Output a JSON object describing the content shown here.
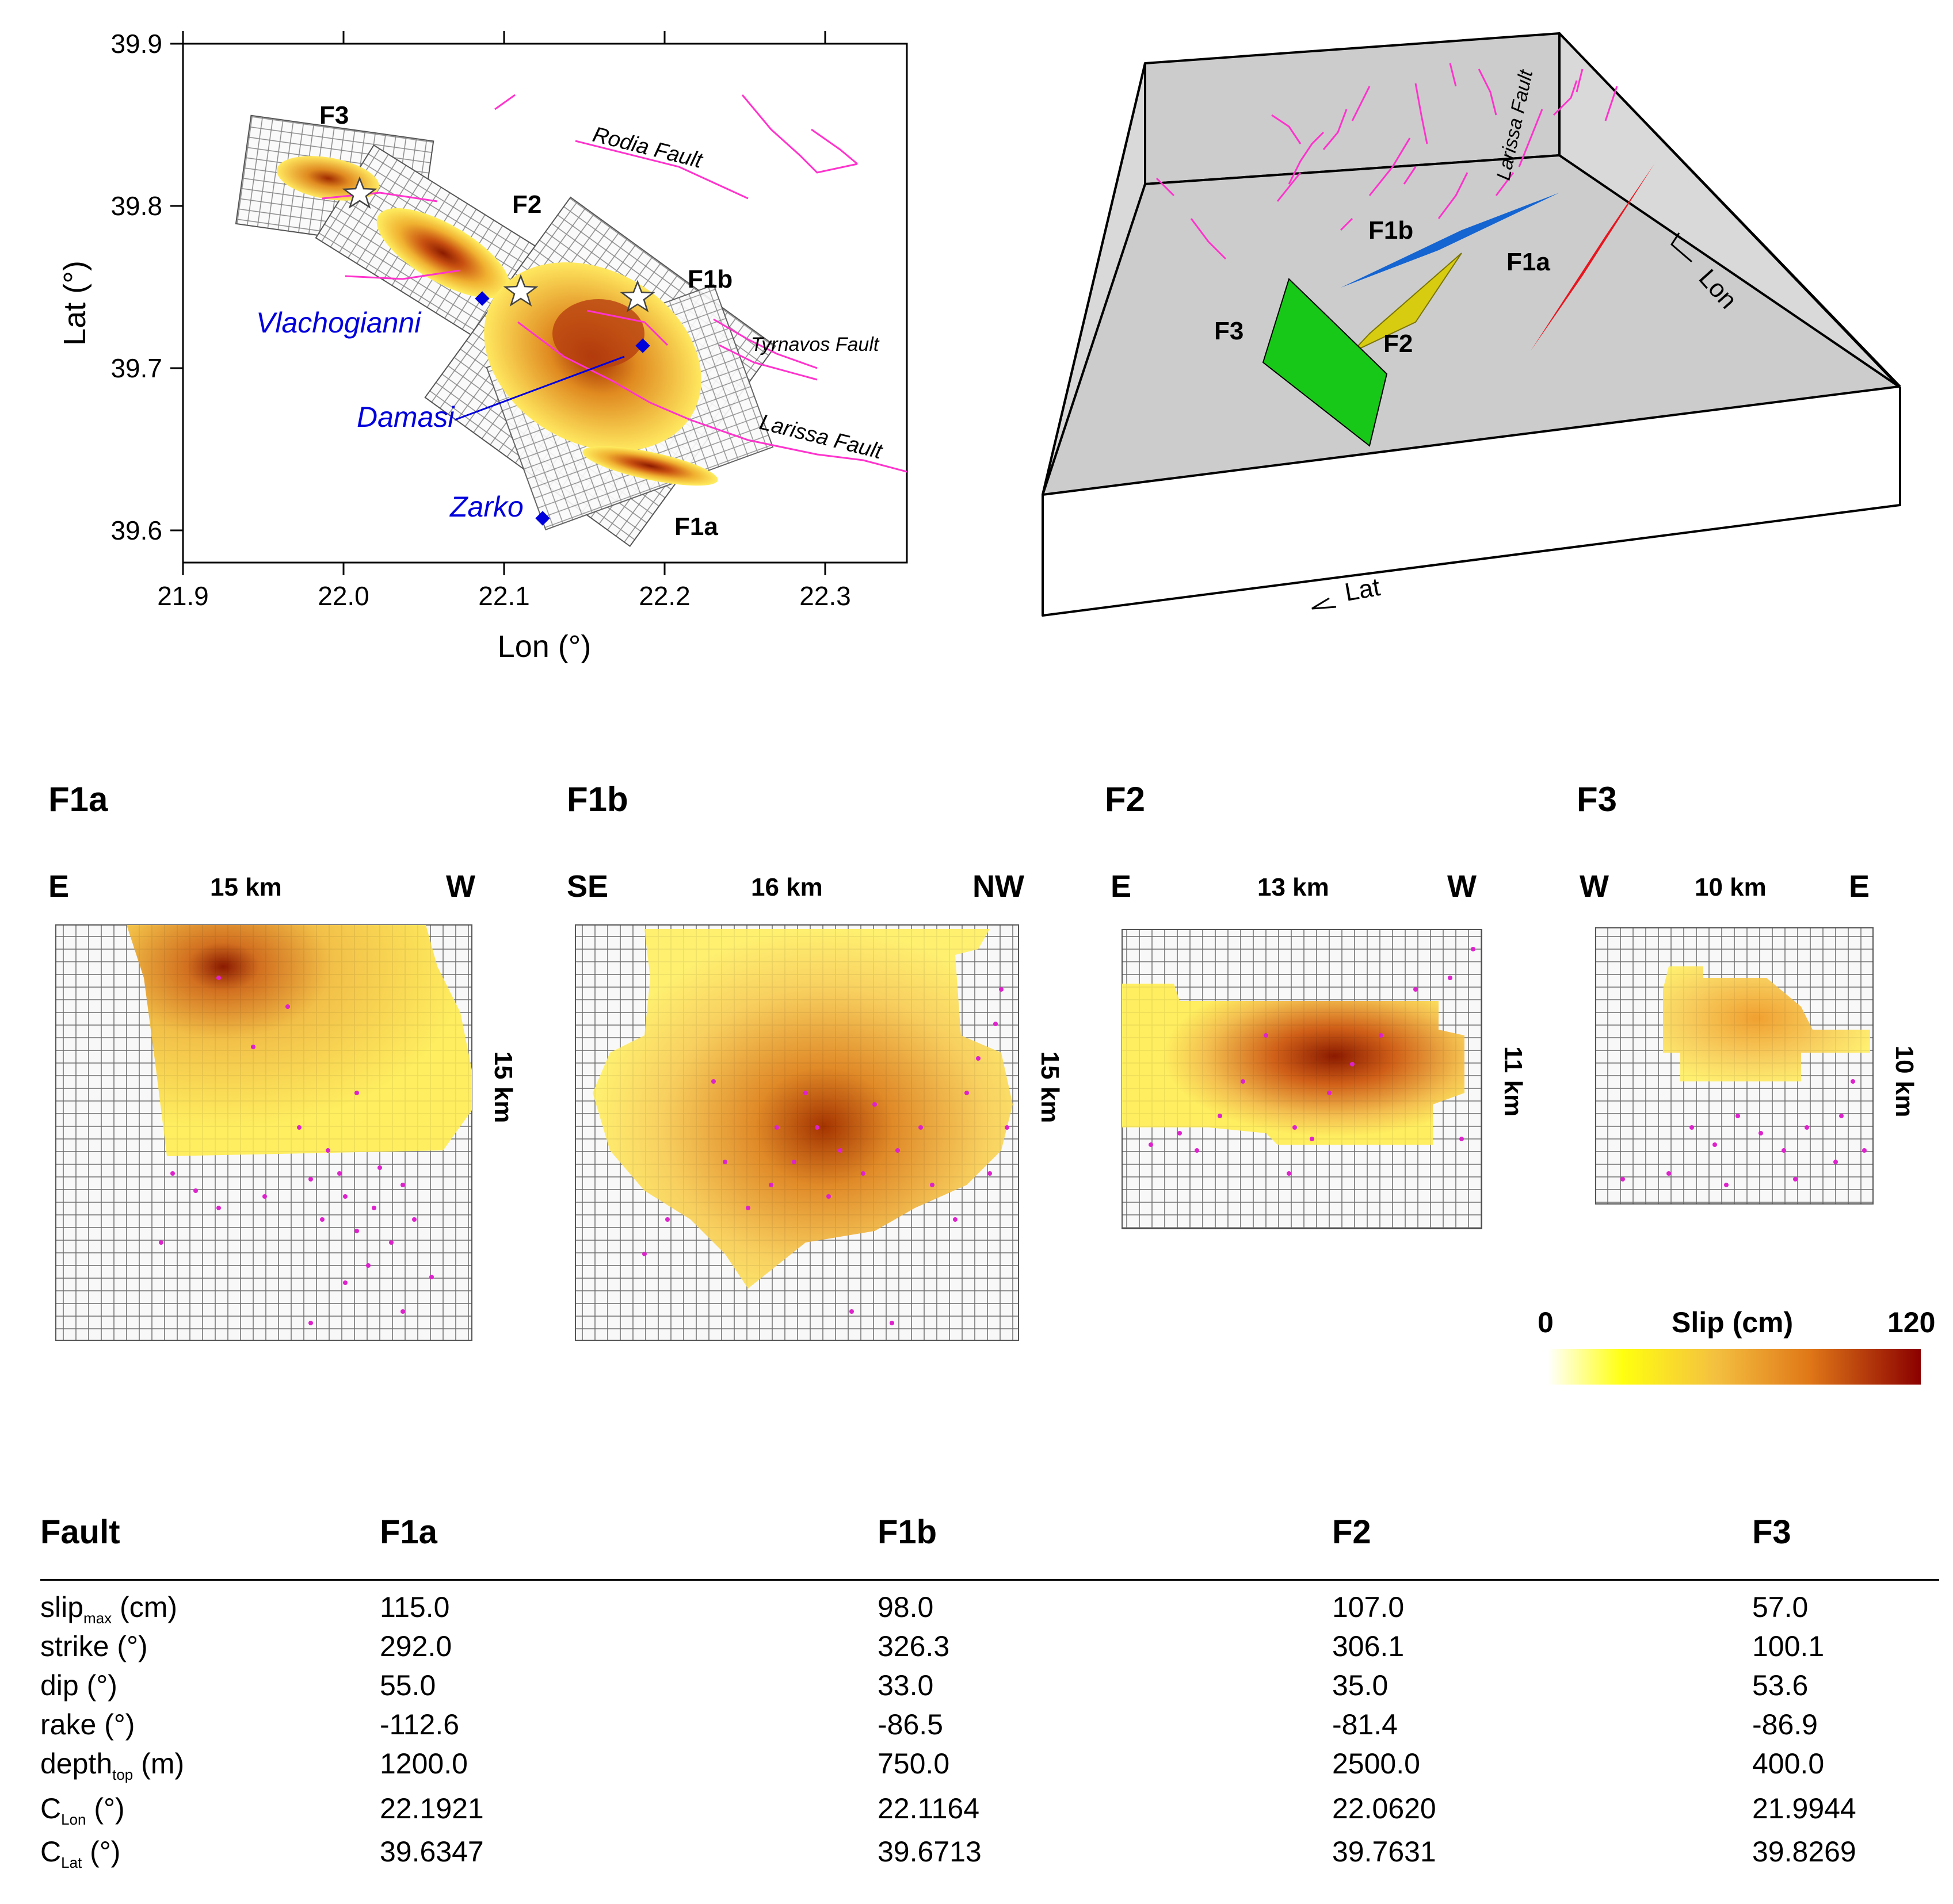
{
  "map": {
    "xlabel": "Lon (°)",
    "ylabel": "Lat (°)",
    "xticks": [
      "21.9",
      "22.0",
      "22.1",
      "22.2",
      "22.3"
    ],
    "yticks": [
      "39.9",
      "39.8",
      "39.7",
      "39.6"
    ],
    "xlim": [
      21.9,
      22.35
    ],
    "ylim": [
      39.58,
      39.9
    ],
    "fault_labels": [
      "F3",
      "F2",
      "F1b",
      "F1a"
    ],
    "fault_traces": [
      "Rodia Fault",
      "Tyrnavos Fault",
      "Larissa Fault"
    ],
    "towns": [
      "Vlachogianni",
      "Damasi",
      "Zarko"
    ],
    "colors": {
      "trace": "#ff33cc",
      "town": "#0000dd",
      "epicenter": "#ffffff"
    }
  },
  "view3d": {
    "labels": [
      "F1b",
      "F1a",
      "F3",
      "F2"
    ],
    "trace_label": "Larissa Fault",
    "axis_lon": "Lon",
    "axis_lat": "Lat",
    "colors": {
      "F1a": "#e8141e",
      "F1b": "#1464d2",
      "F2": "#d8cc10",
      "F3": "#18c818",
      "box": "#cccccc"
    }
  },
  "slip_panels": [
    {
      "name": "F1a",
      "left_dir": "E",
      "right_dir": "W",
      "width": "15 km",
      "height": "15 km"
    },
    {
      "name": "F1b",
      "left_dir": "SE",
      "right_dir": "NW",
      "width": "16 km",
      "height": "15 km"
    },
    {
      "name": "F2",
      "left_dir": "E",
      "right_dir": "W",
      "width": "13 km",
      "height": "11 km"
    },
    {
      "name": "F3",
      "left_dir": "W",
      "right_dir": "E",
      "width": "10 km",
      "height": "10 km"
    }
  ],
  "colorbar": {
    "label": "Slip (cm)",
    "min": "0",
    "max": "120",
    "colors": [
      "#ffffff",
      "#ffff00",
      "#f0a020",
      "#c04000",
      "#8b0000"
    ]
  },
  "table": {
    "header": [
      "Fault",
      "F1a",
      "F1b",
      "F2",
      "F3"
    ],
    "rows": [
      {
        "param": "slip",
        "sub": "max",
        "unit": "(cm)",
        "values": [
          "115.0",
          "98.0",
          "107.0",
          "57.0"
        ]
      },
      {
        "param": "strike (°)",
        "sub": "",
        "unit": "",
        "values": [
          "292.0",
          "326.3",
          "306.1",
          "100.1"
        ]
      },
      {
        "param": "dip (°)",
        "sub": "",
        "unit": "",
        "values": [
          "55.0",
          "33.0",
          "35.0",
          "53.6"
        ]
      },
      {
        "param": "rake (°)",
        "sub": "",
        "unit": "",
        "values": [
          "-112.6",
          "-86.5",
          "-81.4",
          "-86.9"
        ]
      },
      {
        "param": "depth",
        "sub": "top",
        "unit": "(m)",
        "values": [
          "1200.0",
          "750.0",
          "2500.0",
          "400.0"
        ]
      },
      {
        "param": "C",
        "sub": "Lon",
        "unit": "(°)",
        "values": [
          "22.1921",
          "22.1164",
          "22.0620",
          "21.9944"
        ]
      },
      {
        "param": "C",
        "sub": "Lat",
        "unit": "(°)",
        "values": [
          "39.6347",
          "39.6713",
          "39.7631",
          "39.8269"
        ]
      }
    ]
  }
}
